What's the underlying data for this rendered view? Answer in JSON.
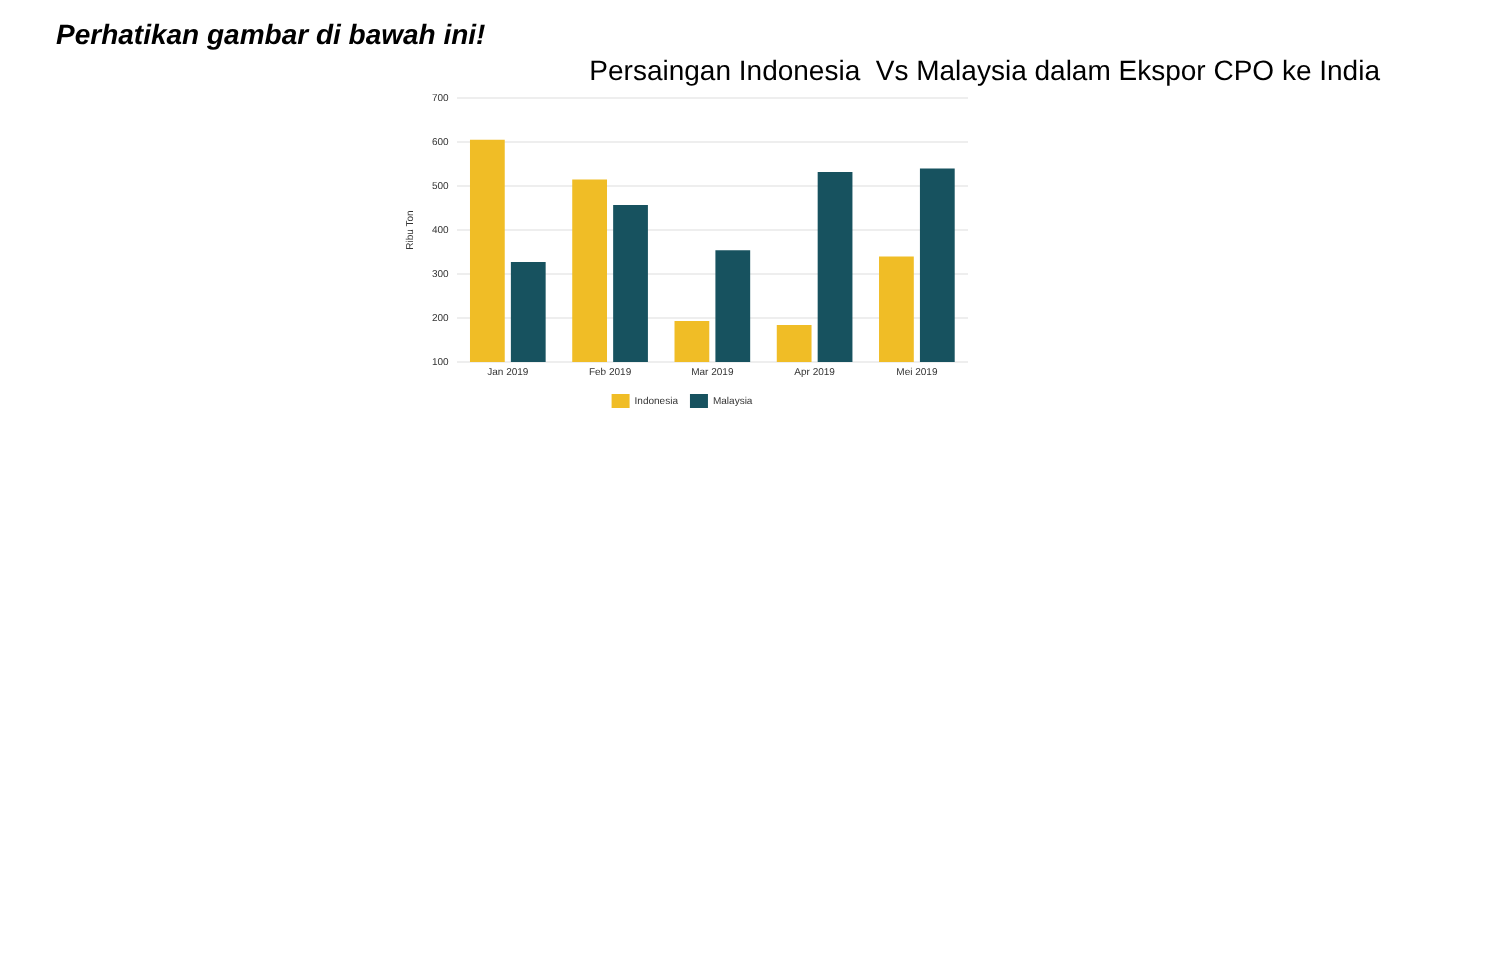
{
  "chart_data": {
    "type": "bar",
    "title": "Persaingan Indonesia  Vs Malaysia dalam Ekspor CPO ke India",
    "annotations": [
      "Perhatikan gambar di bawah ini!"
    ],
    "ylabel": "Ribu Ton",
    "categories": [
      "Jan 2019",
      "Feb 2019",
      "Mar 2019",
      "Apr 2019",
      "Mei 2019"
    ],
    "series": [
      {
        "name": "Indonesia",
        "color": "#f0bd26",
        "values": [
          605,
          515,
          193,
          184,
          340
        ]
      },
      {
        "name": "Malaysia",
        "color": "#17525f",
        "values": [
          327,
          457,
          354,
          532,
          540
        ]
      }
    ],
    "ylim": [
      100,
      700
    ],
    "yticks": [
      100,
      200,
      300,
      400,
      500,
      600,
      700
    ],
    "grid": "y",
    "legend": "bottom"
  }
}
